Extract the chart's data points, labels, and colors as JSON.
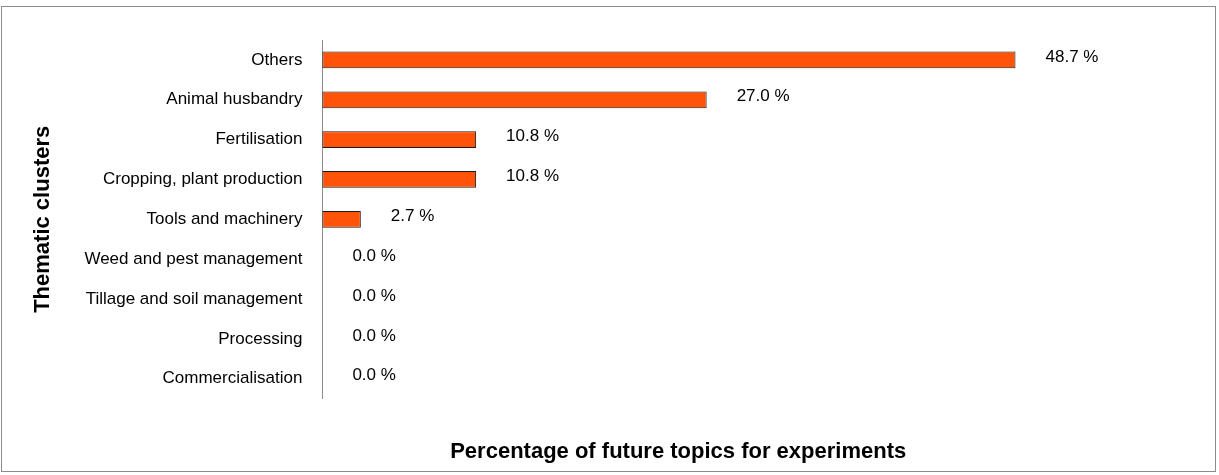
{
  "chart_data": {
    "type": "bar",
    "orientation": "horizontal",
    "xlabel": "Percentage of future topics for experiments",
    "ylabel": "Thematic clusters",
    "categories": [
      "Others",
      "Animal husbandry",
      "Fertilisation",
      "Cropping, plant production",
      "Tools and machinery",
      "Weed and pest management",
      "Tillage and soil management",
      "Processing",
      "Commercialisation"
    ],
    "values": [
      48.7,
      27.0,
      10.8,
      10.8,
      2.7,
      0.0,
      0.0,
      0.0,
      0.0
    ],
    "value_labels": [
      "48.7 %",
      "27.0 %",
      "10.8 %",
      "10.8 %",
      "2.7 %",
      "0.0 %",
      "0.0 %",
      "0.0 %",
      "0.0 %"
    ],
    "color": "#ff5309",
    "grid": false,
    "legend": false
  }
}
